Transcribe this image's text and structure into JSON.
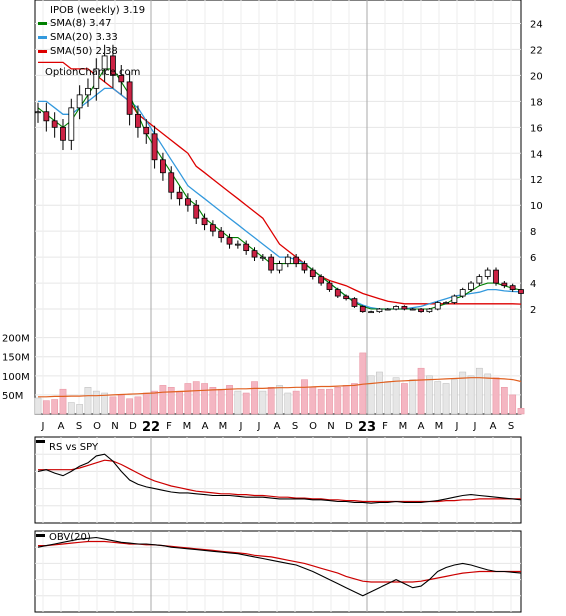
{
  "chart_data": [
    {
      "type": "candlestick",
      "title": "IPOB (weekly) 3.19",
      "source_label": "OptionChance.com",
      "yticks": [
        "24",
        "22",
        "20",
        "18",
        "16",
        "14",
        "12",
        "10",
        "8",
        "6",
        "4",
        "2"
      ],
      "ylim": [
        0,
        25.5
      ],
      "legend": [
        {
          "label": "SMA(8) 3.47",
          "color": "#008000"
        },
        {
          "label": "SMA(20) 3.33",
          "color": "#3399dd"
        },
        {
          "label": "SMA(50) 2.38",
          "color": "#dd0000"
        }
      ],
      "x_month_labels": [
        "J",
        "A",
        "S",
        "O",
        "N",
        "D",
        "22",
        "F",
        "M",
        "A",
        "M",
        "J",
        "J",
        "A",
        "S",
        "O",
        "N",
        "D",
        "23",
        "F",
        "M",
        "A",
        "M",
        "J",
        "J",
        "A",
        "S"
      ],
      "close": [
        17.2,
        16.5,
        16.0,
        15.0,
        17.5,
        18.5,
        19.0,
        20.5,
        21.5,
        20.0,
        19.5,
        17.0,
        16.0,
        15.5,
        13.5,
        12.5,
        11.0,
        10.5,
        10.0,
        9.0,
        8.5,
        8.0,
        7.5,
        7.0,
        7.0,
        6.5,
        6.0,
        6.0,
        5.0,
        5.5,
        6.0,
        5.5,
        5.0,
        4.5,
        4.0,
        3.5,
        3.0,
        2.8,
        2.2,
        1.8,
        1.8,
        2.0,
        2.0,
        2.2,
        2.0,
        2.0,
        1.8,
        2.0,
        2.5,
        2.5,
        3.0,
        3.5,
        4.0,
        4.5,
        5.0,
        4.0,
        3.8,
        3.5,
        3.2
      ],
      "sma8": [
        17.5,
        17.0,
        16.5,
        16.0,
        16.5,
        17.5,
        18.5,
        19.5,
        20.5,
        20.5,
        19.5,
        18.5,
        17.0,
        15.5,
        14.5,
        13.5,
        12.5,
        11.5,
        10.5,
        10.0,
        9.0,
        8.5,
        8.0,
        7.5,
        7.5,
        7.0,
        6.5,
        6.0,
        5.5,
        5.5,
        5.5,
        5.5,
        5.5,
        5.0,
        4.5,
        4.0,
        3.5,
        3.0,
        2.5,
        2.2,
        2.0,
        2.0,
        2.0,
        2.0,
        2.0,
        2.0,
        2.0,
        2.0,
        2.2,
        2.4,
        2.8,
        3.0,
        3.4,
        3.8,
        4.0,
        4.0,
        3.8,
        3.6,
        3.47
      ],
      "sma20": [
        18.0,
        18.0,
        17.5,
        17.0,
        17.0,
        17.5,
        18.0,
        18.5,
        19.0,
        19.0,
        18.5,
        18.0,
        17.5,
        16.5,
        15.5,
        14.5,
        13.5,
        12.5,
        11.5,
        11.0,
        10.5,
        10.0,
        9.5,
        9.0,
        8.5,
        8.0,
        7.5,
        7.0,
        6.5,
        6.0,
        6.0,
        5.8,
        5.5,
        5.0,
        4.5,
        4.0,
        3.5,
        3.0,
        2.6,
        2.3,
        2.1,
        2.0,
        2.0,
        2.0,
        2.0,
        2.1,
        2.2,
        2.4,
        2.6,
        2.8,
        3.0,
        3.1,
        3.2,
        3.3,
        3.5,
        3.5,
        3.4,
        3.35,
        3.33
      ],
      "sma50": [
        21.0,
        21.0,
        21.0,
        21.0,
        20.5,
        20.5,
        20.5,
        20.0,
        19.5,
        19.0,
        18.5,
        18.0,
        17.0,
        16.5,
        16.0,
        15.5,
        15.0,
        14.5,
        14.0,
        13.0,
        12.5,
        12.0,
        11.5,
        11.0,
        10.5,
        10.0,
        9.5,
        9.0,
        8.0,
        7.0,
        6.5,
        6.0,
        5.5,
        5.0,
        4.5,
        4.2,
        4.0,
        3.8,
        3.5,
        3.2,
        3.0,
        2.8,
        2.6,
        2.5,
        2.4,
        2.4,
        2.4,
        2.4,
        2.4,
        2.4,
        2.4,
        2.4,
        2.4,
        2.4,
        2.4,
        2.4,
        2.4,
        2.4,
        2.38
      ]
    },
    {
      "type": "bar",
      "title": "Volume",
      "yticks": [
        "200M",
        "150M",
        "100M",
        "50M"
      ],
      "ylim": [
        0,
        220
      ],
      "values": [
        42,
        35,
        38,
        65,
        30,
        25,
        70,
        60,
        55,
        45,
        50,
        40,
        45,
        55,
        60,
        75,
        70,
        60,
        80,
        85,
        80,
        70,
        65,
        75,
        60,
        55,
        85,
        60,
        70,
        75,
        55,
        60,
        90,
        70,
        65,
        65,
        70,
        75,
        80,
        160,
        100,
        110,
        85,
        95,
        80,
        90,
        120,
        100,
        85,
        80,
        90,
        110,
        100,
        120,
        105,
        95,
        70,
        50,
        15
      ],
      "average": [
        45,
        45,
        46,
        46,
        47,
        47,
        48,
        48,
        49,
        50,
        51,
        52,
        53,
        54,
        55,
        57,
        58,
        59,
        60,
        61,
        62,
        63,
        64,
        65,
        66,
        66,
        67,
        67,
        68,
        69,
        69,
        70,
        70,
        71,
        72,
        72,
        73,
        74,
        75,
        78,
        80,
        82,
        84,
        86,
        87,
        88,
        89,
        90,
        91,
        92,
        93,
        94,
        95,
        95,
        94,
        93,
        92,
        90,
        85
      ]
    },
    {
      "type": "line",
      "title": "RS vs SPY",
      "series": [
        {
          "name": "RS vs SPY",
          "color": "#000000",
          "values": [
            60,
            62,
            58,
            55,
            60,
            66,
            70,
            78,
            80,
            72,
            60,
            50,
            45,
            42,
            40,
            38,
            36,
            35,
            35,
            34,
            33,
            32,
            32,
            32,
            31,
            30,
            30,
            30,
            29,
            28,
            28,
            28,
            28,
            27,
            27,
            26,
            25,
            25,
            24,
            24,
            23,
            24,
            24,
            25,
            24,
            24,
            24,
            25,
            26,
            28,
            30,
            32,
            33,
            32,
            31,
            30,
            29,
            28,
            27
          ]
        },
        {
          "name": "average",
          "color": "#cc0000",
          "values": [
            62,
            62,
            62,
            62,
            62,
            64,
            67,
            70,
            73,
            72,
            68,
            63,
            58,
            53,
            49,
            46,
            43,
            41,
            39,
            37,
            36,
            35,
            34,
            34,
            33,
            33,
            32,
            32,
            31,
            30,
            30,
            29,
            29,
            28,
            28,
            27,
            27,
            26,
            26,
            25,
            25,
            25,
            25,
            25,
            25,
            25,
            25,
            25,
            25,
            26,
            26,
            27,
            27,
            28,
            28,
            28,
            28,
            28,
            28
          ]
        }
      ]
    },
    {
      "type": "line",
      "title": "OBV(20)",
      "series": [
        {
          "name": "OBV(20)",
          "color": "#000000",
          "values": [
            80,
            82,
            84,
            86,
            88,
            90,
            91,
            92,
            90,
            88,
            86,
            85,
            84,
            84,
            83,
            82,
            80,
            79,
            78,
            77,
            76,
            75,
            74,
            73,
            72,
            70,
            68,
            66,
            64,
            62,
            60,
            58,
            54,
            50,
            45,
            40,
            35,
            30,
            25,
            20,
            25,
            30,
            35,
            40,
            35,
            30,
            32,
            40,
            50,
            55,
            58,
            60,
            58,
            55,
            52,
            50,
            50,
            49,
            48
          ]
        },
        {
          "name": "average",
          "color": "#cc0000",
          "values": [
            82,
            82,
            83,
            84,
            85,
            86,
            87,
            87,
            87,
            86,
            85,
            84,
            84,
            83,
            83,
            82,
            81,
            80,
            79,
            78,
            77,
            76,
            75,
            74,
            73,
            72,
            70,
            69,
            68,
            66,
            64,
            62,
            60,
            57,
            54,
            51,
            48,
            44,
            41,
            38,
            37,
            37,
            37,
            37,
            37,
            37,
            38,
            40,
            42,
            44,
            46,
            48,
            49,
            50,
            50,
            50,
            50,
            50,
            50
          ]
        }
      ]
    }
  ]
}
